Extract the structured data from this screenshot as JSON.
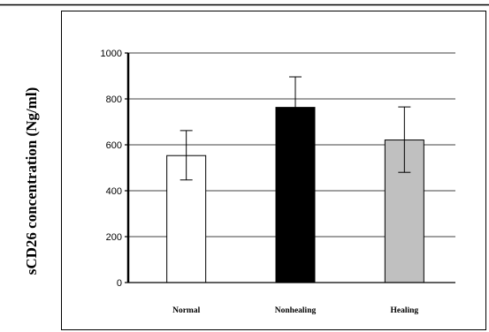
{
  "chart_data": {
    "type": "bar",
    "title": "",
    "xlabel": "",
    "ylabel": "sCD26 concentration (Ng/ml)",
    "categories": [
      "Normal",
      "Nonhealing",
      "Healing"
    ],
    "values": [
      553,
      763,
      621
    ],
    "error_low": [
      447,
      634,
      480
    ],
    "error_high": [
      662,
      896,
      765
    ],
    "bar_colors": [
      "#ffffff",
      "#000000",
      "#c0c0c0"
    ],
    "ylim": [
      0,
      1000
    ],
    "yticks": [
      0,
      200,
      400,
      600,
      800,
      1000
    ],
    "grid": true,
    "legend": "none"
  }
}
